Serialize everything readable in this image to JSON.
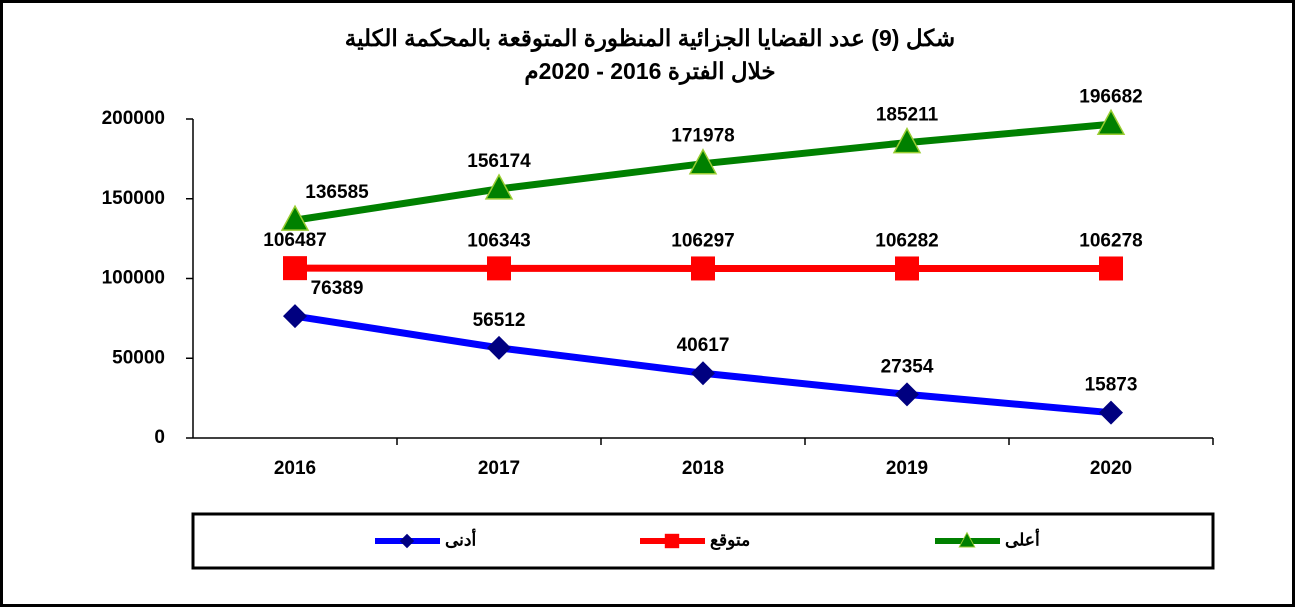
{
  "chart_data": {
    "type": "line",
    "title": [
      "شكل (9) عدد القضايا الجزائية المنظورة المتوقعة بالمحكمة الكلية",
      "خلال الفترة 2016 - 2020م"
    ],
    "categories": [
      "2016",
      "2017",
      "2018",
      "2019",
      "2020"
    ],
    "series": [
      {
        "name": "أدنى",
        "color": "#0000ff",
        "marker_color": "#000080",
        "marker": "diamond",
        "values": [
          76389,
          56512,
          40617,
          27354,
          15873
        ]
      },
      {
        "name": "متوقع",
        "color": "#ff0000",
        "marker_color": "#ff0000",
        "marker": "square",
        "values": [
          106487,
          106343,
          106297,
          106282,
          106278
        ]
      },
      {
        "name": "أعلى",
        "color": "#008000",
        "marker_color": "#008000",
        "marker": "triangle",
        "values": [
          136585,
          156174,
          171978,
          185211,
          196682
        ]
      }
    ],
    "ylim": [
      0,
      200000
    ],
    "yticks": [
      0,
      50000,
      100000,
      150000,
      200000
    ],
    "grid": false,
    "legend": "bottom"
  }
}
